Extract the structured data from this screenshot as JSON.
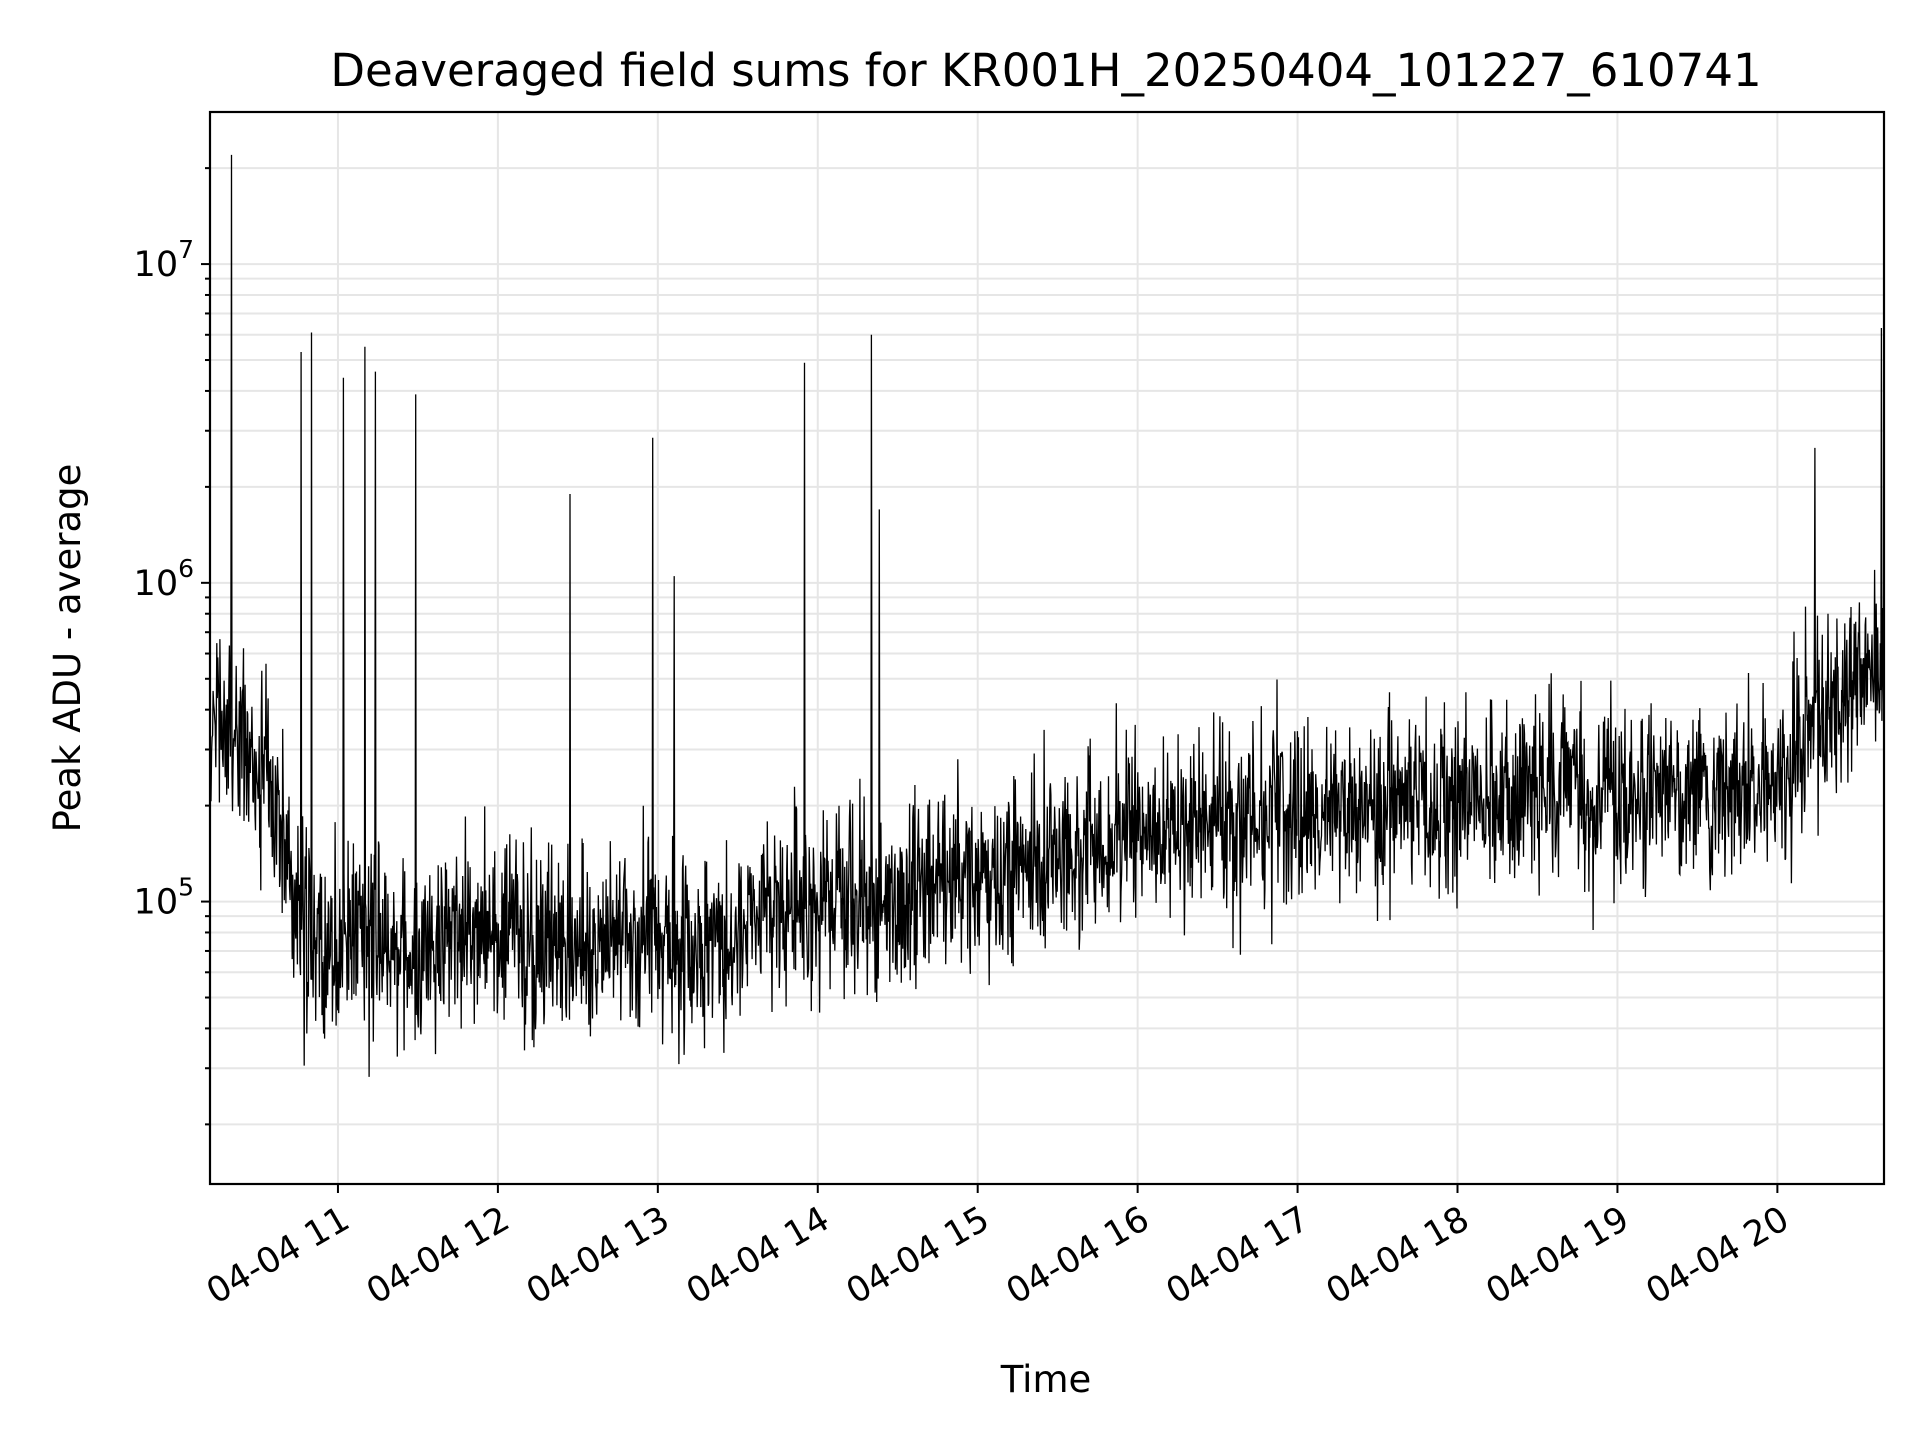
{
  "chart_data": {
    "type": "line",
    "title": "Deaveraged field sums for KR001H_20250404_101227_610741",
    "xlabel": "Time",
    "ylabel": "Peak ADU - average",
    "x_axis": {
      "kind": "datetime",
      "range": [
        "2025-04-04T10:12",
        "2025-04-04T20:40"
      ],
      "ticks": [
        {
          "time": "2025-04-04T11:00",
          "label": "04-04 11"
        },
        {
          "time": "2025-04-04T12:00",
          "label": "04-04 12"
        },
        {
          "time": "2025-04-04T13:00",
          "label": "04-04 13"
        },
        {
          "time": "2025-04-04T14:00",
          "label": "04-04 14"
        },
        {
          "time": "2025-04-04T15:00",
          "label": "04-04 15"
        },
        {
          "time": "2025-04-04T16:00",
          "label": "04-04 16"
        },
        {
          "time": "2025-04-04T17:00",
          "label": "04-04 17"
        },
        {
          "time": "2025-04-04T18:00",
          "label": "04-04 18"
        },
        {
          "time": "2025-04-04T19:00",
          "label": "04-04 19"
        },
        {
          "time": "2025-04-04T20:00",
          "label": "04-04 20"
        }
      ]
    },
    "y_axis": {
      "scale": "log",
      "range": [
        13000,
        30000000
      ],
      "ticks": [
        {
          "value": 100000,
          "base": "10",
          "exponent": "5"
        },
        {
          "value": 1000000,
          "base": "10",
          "exponent": "6"
        },
        {
          "value": 10000000,
          "base": "10",
          "exponent": "7"
        }
      ]
    },
    "grid": true,
    "grid_minor": true,
    "line_color": "#000000",
    "series": [
      {
        "points": [
          [
            "2025-04-04T10:12",
            260000
          ],
          [
            "2025-04-04T10:15",
            400000
          ],
          [
            "2025-04-04T10:20",
            330000
          ],
          [
            "2025-04-04T10:25",
            280000
          ],
          [
            "2025-04-04T10:30",
            250000
          ],
          [
            "2025-04-04T10:35",
            220000
          ],
          [
            "2025-04-04T10:40",
            140000
          ],
          [
            "2025-04-04T10:45",
            80000
          ],
          [
            "2025-04-04T10:50",
            75000
          ],
          [
            "2025-04-04T11:00",
            70000
          ],
          [
            "2025-04-04T11:15",
            80000
          ],
          [
            "2025-04-04T11:30",
            70000
          ],
          [
            "2025-04-04T11:45",
            85000
          ],
          [
            "2025-04-04T12:00",
            80000
          ],
          [
            "2025-04-04T12:15",
            75000
          ],
          [
            "2025-04-04T12:30",
            70000
          ],
          [
            "2025-04-04T12:45",
            72000
          ],
          [
            "2025-04-04T13:00",
            75000
          ],
          [
            "2025-04-04T13:15",
            70000
          ],
          [
            "2025-04-04T13:30",
            80000
          ],
          [
            "2025-04-04T13:45",
            100000
          ],
          [
            "2025-04-04T14:00",
            105000
          ],
          [
            "2025-04-04T14:30",
            105000
          ],
          [
            "2025-04-04T15:00",
            120000
          ],
          [
            "2025-04-04T15:30",
            140000
          ],
          [
            "2025-04-04T16:00",
            160000
          ],
          [
            "2025-04-04T16:30",
            175000
          ],
          [
            "2025-04-04T17:00",
            185000
          ],
          [
            "2025-04-04T17:30",
            195000
          ],
          [
            "2025-04-04T18:00",
            210000
          ],
          [
            "2025-04-04T18:30",
            225000
          ],
          [
            "2025-04-04T19:00",
            230000
          ],
          [
            "2025-04-04T19:30",
            220000
          ],
          [
            "2025-04-04T20:00",
            225000
          ],
          [
            "2025-04-04T20:10",
            320000
          ],
          [
            "2025-04-04T20:20",
            420000
          ],
          [
            "2025-04-04T20:30",
            480000
          ],
          [
            "2025-04-04T20:40",
            500000
          ]
        ],
        "spikes": [
          [
            "2025-04-04T10:20",
            22000000
          ],
          [
            "2025-04-04T10:46",
            5300000
          ],
          [
            "2025-04-04T10:50",
            6100000
          ],
          [
            "2025-04-04T11:02",
            4400000
          ],
          [
            "2025-04-04T11:10",
            5500000
          ],
          [
            "2025-04-04T11:14",
            4600000
          ],
          [
            "2025-04-04T11:29",
            3900000
          ],
          [
            "2025-04-04T12:27",
            1900000
          ],
          [
            "2025-04-04T12:58",
            2850000
          ],
          [
            "2025-04-04T13:06",
            1050000
          ],
          [
            "2025-04-04T13:55",
            4900000
          ],
          [
            "2025-04-04T14:20",
            6000000
          ],
          [
            "2025-04-04T14:23",
            1700000
          ],
          [
            "2025-04-04T20:14",
            2650000
          ],
          [
            "2025-04-04T20:39",
            6300000
          ]
        ]
      }
    ]
  }
}
